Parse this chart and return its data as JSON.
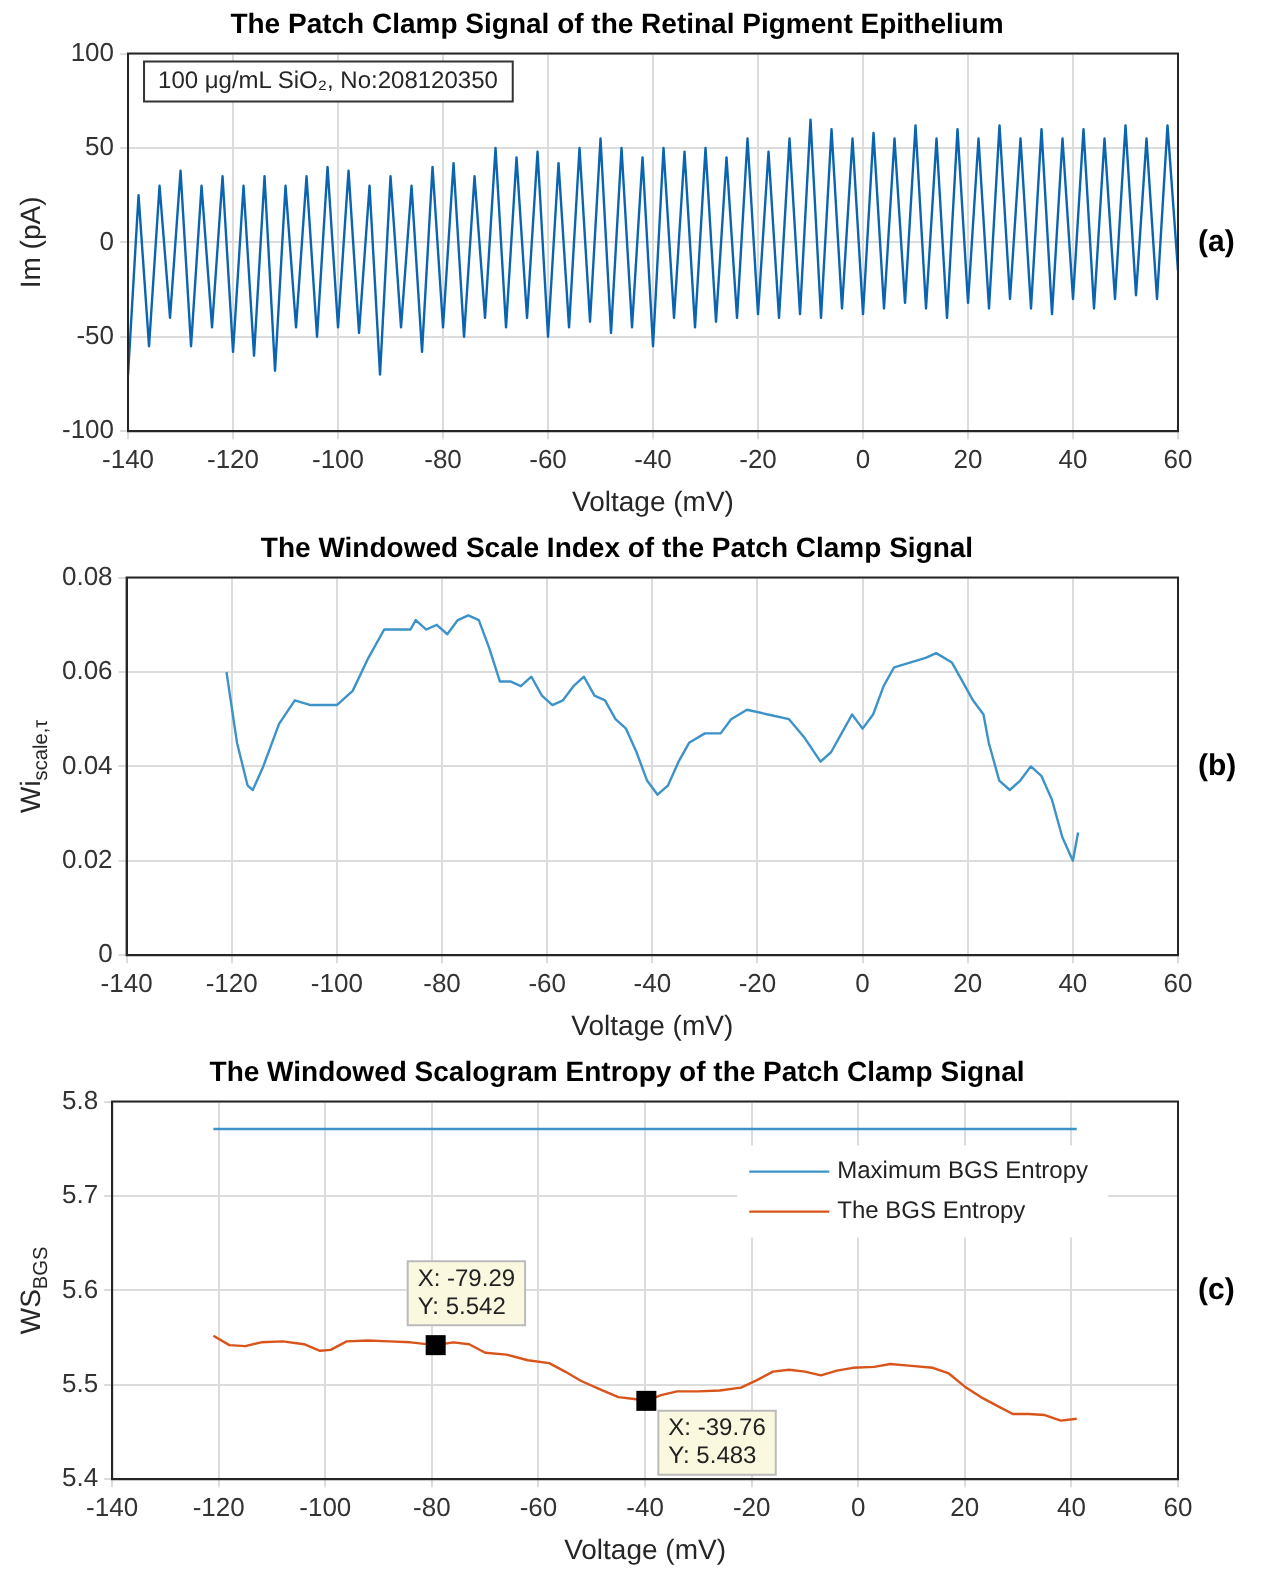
{
  "chart_data": [
    {
      "type": "line",
      "title": "The Patch Clamp Signal of the Retinal Pigment Epithelium",
      "xlabel": "Voltage (mV)",
      "ylabel": "Im (pA)",
      "xlim": [
        -140,
        60
      ],
      "ylim": [
        -100,
        100
      ],
      "xticks": [
        -140,
        -120,
        -100,
        -80,
        -60,
        -40,
        -20,
        0,
        20,
        40,
        60
      ],
      "yticks": [
        -100,
        -50,
        0,
        50,
        100
      ],
      "grid": true,
      "marker": "none",
      "annotations": [
        "100 μg/mL SiO₂, No:208120350",
        "(a)"
      ],
      "series": [
        {
          "color": "#0b64b0",
          "x": [
            -140,
            -138,
            -136,
            -134,
            -132,
            -130,
            -128,
            -126,
            -124,
            -122,
            -120,
            -118,
            -116,
            -114,
            -112,
            -110,
            -108,
            -106,
            -104,
            -102,
            -100,
            -98,
            -96,
            -94,
            -92,
            -90,
            -88,
            -86,
            -84,
            -82,
            -80,
            -78,
            -76,
            -74,
            -72,
            -70,
            -68,
            -66,
            -64,
            -62,
            -60,
            -58,
            -56,
            -54,
            -52,
            -50,
            -48,
            -46,
            -44,
            -42,
            -40,
            -38,
            -36,
            -34,
            -32,
            -30,
            -28,
            -26,
            -24,
            -22,
            -20,
            -18,
            -16,
            -14,
            -12,
            -10,
            -8,
            -6,
            -4,
            -2,
            0,
            2,
            4,
            6,
            8,
            10,
            12,
            14,
            16,
            18,
            20,
            22,
            24,
            26,
            28,
            30,
            32,
            34,
            36,
            38,
            40,
            42,
            44,
            46,
            48,
            50,
            52,
            54,
            56,
            58,
            60
          ],
          "values": [
            -70,
            25,
            -55,
            30,
            -40,
            38,
            -55,
            30,
            -45,
            35,
            -58,
            30,
            -60,
            35,
            -68,
            30,
            -45,
            35,
            -50,
            40,
            -45,
            38,
            -48,
            30,
            -70,
            35,
            -45,
            30,
            -58,
            40,
            -45,
            42,
            -50,
            35,
            -40,
            50,
            -45,
            45,
            -40,
            48,
            -50,
            42,
            -45,
            50,
            -42,
            55,
            -48,
            50,
            -45,
            45,
            -55,
            50,
            -40,
            48,
            -45,
            50,
            -42,
            45,
            -40,
            55,
            -38,
            48,
            -40,
            55,
            -38,
            65,
            -40,
            60,
            -35,
            55,
            -38,
            58,
            -35,
            55,
            -32,
            62,
            -35,
            55,
            -40,
            60,
            -32,
            55,
            -35,
            62,
            -30,
            55,
            -35,
            60,
            -38,
            55,
            -30,
            60,
            -35,
            55,
            -30,
            62,
            -28,
            55,
            -30,
            62,
            -15
          ]
        }
      ]
    },
    {
      "type": "line",
      "title": "The Windowed Scale Index of the Patch Clamp Signal",
      "xlabel": "Voltage (mV)",
      "ylabel": "Wi$_{scale,τ}$",
      "xlim": [
        -140,
        60
      ],
      "ylim": [
        0,
        0.08
      ],
      "xticks": [
        -140,
        -120,
        -100,
        -80,
        -60,
        -40,
        -20,
        0,
        20,
        40,
        60
      ],
      "yticks": [
        0,
        0.02,
        0.04,
        0.06,
        0.08
      ],
      "grid": true,
      "marker": "none",
      "annotations": [
        "(b)"
      ],
      "series": [
        {
          "color": "#3d93c8",
          "x": [
            -121,
            -119,
            -117,
            -116,
            -114,
            -111,
            -108,
            -105,
            -100,
            -97,
            -94,
            -91,
            -88,
            -86,
            -85,
            -83,
            -81,
            -79,
            -77,
            -75,
            -73,
            -71,
            -69,
            -67,
            -65,
            -63,
            -61,
            -59,
            -57,
            -55,
            -53,
            -51,
            -49,
            -47,
            -45,
            -43,
            -41,
            -39,
            -37,
            -35,
            -33,
            -30,
            -27,
            -25,
            -22,
            -18,
            -14,
            -11,
            -8,
            -6,
            -4,
            -2,
            0,
            2,
            4,
            6,
            9,
            12,
            14,
            17,
            19,
            21,
            23,
            24,
            26,
            28,
            30,
            32,
            34,
            36,
            38,
            40,
            41
          ],
          "values": [
            0.06,
            0.045,
            0.036,
            0.035,
            0.04,
            0.049,
            0.054,
            0.053,
            0.053,
            0.056,
            0.063,
            0.069,
            0.069,
            0.069,
            0.071,
            0.069,
            0.07,
            0.068,
            0.071,
            0.072,
            0.071,
            0.065,
            0.058,
            0.058,
            0.057,
            0.059,
            0.055,
            0.053,
            0.054,
            0.057,
            0.059,
            0.055,
            0.054,
            0.05,
            0.048,
            0.043,
            0.037,
            0.034,
            0.036,
            0.041,
            0.045,
            0.047,
            0.047,
            0.05,
            0.052,
            0.051,
            0.05,
            0.046,
            0.041,
            0.043,
            0.047,
            0.051,
            0.048,
            0.051,
            0.057,
            0.061,
            0.062,
            0.063,
            0.064,
            0.062,
            0.058,
            0.054,
            0.051,
            0.045,
            0.037,
            0.035,
            0.037,
            0.04,
            0.038,
            0.033,
            0.025,
            0.02,
            0.026
          ]
        }
      ]
    },
    {
      "type": "line",
      "title": "The Windowed Scalogram Entropy of the Patch Clamp Signal",
      "xlabel": "Voltage (mV)",
      "ylabel": "WS$_{BGS}$",
      "xlim": [
        -140,
        60
      ],
      "ylim": [
        5.4,
        5.8
      ],
      "xticks": [
        -140,
        -120,
        -100,
        -80,
        -60,
        -40,
        -20,
        0,
        20,
        40,
        60
      ],
      "yticks": [
        5.4,
        5.5,
        5.6,
        5.7,
        5.8
      ],
      "grid": true,
      "marker": "none",
      "legend": "top right",
      "annotations": [
        "(c)",
        {
          "text": "X: -79.29\nY: 5.542",
          "x": -79.29,
          "y": 5.542
        },
        {
          "text": "X: -39.76\nY: 5.483",
          "x": -39.76,
          "y": 5.483
        }
      ],
      "series": [
        {
          "name": "Maximum BGS Entropy",
          "color": "#3d93c8",
          "x": [
            -121,
            41
          ],
          "values": [
            5.771,
            5.771
          ]
        },
        {
          "name": "The BGS Entropy",
          "color": "#d9541a",
          "x": [
            -121,
            -118,
            -115,
            -112,
            -108,
            -104,
            -101,
            -99,
            -96,
            -92,
            -88,
            -84,
            -79.29,
            -76,
            -73,
            -70,
            -66,
            -62,
            -58,
            -55,
            -52,
            -48,
            -45,
            -42,
            -39.76,
            -37,
            -34,
            -30,
            -26,
            -22,
            -19,
            -16,
            -13,
            -10,
            -7,
            -4,
            -1,
            3,
            6,
            10,
            14,
            17,
            20,
            23,
            26,
            29,
            32,
            35,
            38,
            41
          ],
          "values": [
            5.552,
            5.542,
            5.541,
            5.545,
            5.546,
            5.543,
            5.536,
            5.537,
            5.546,
            5.547,
            5.546,
            5.545,
            5.542,
            5.545,
            5.543,
            5.534,
            5.532,
            5.526,
            5.523,
            5.514,
            5.504,
            5.494,
            5.487,
            5.485,
            5.483,
            5.489,
            5.493,
            5.493,
            5.494,
            5.497,
            5.505,
            5.514,
            5.516,
            5.514,
            5.51,
            5.515,
            5.518,
            5.519,
            5.522,
            5.52,
            5.518,
            5.512,
            5.498,
            5.487,
            5.478,
            5.469,
            5.469,
            5.468,
            5.462,
            5.464
          ]
        }
      ]
    }
  ]
}
